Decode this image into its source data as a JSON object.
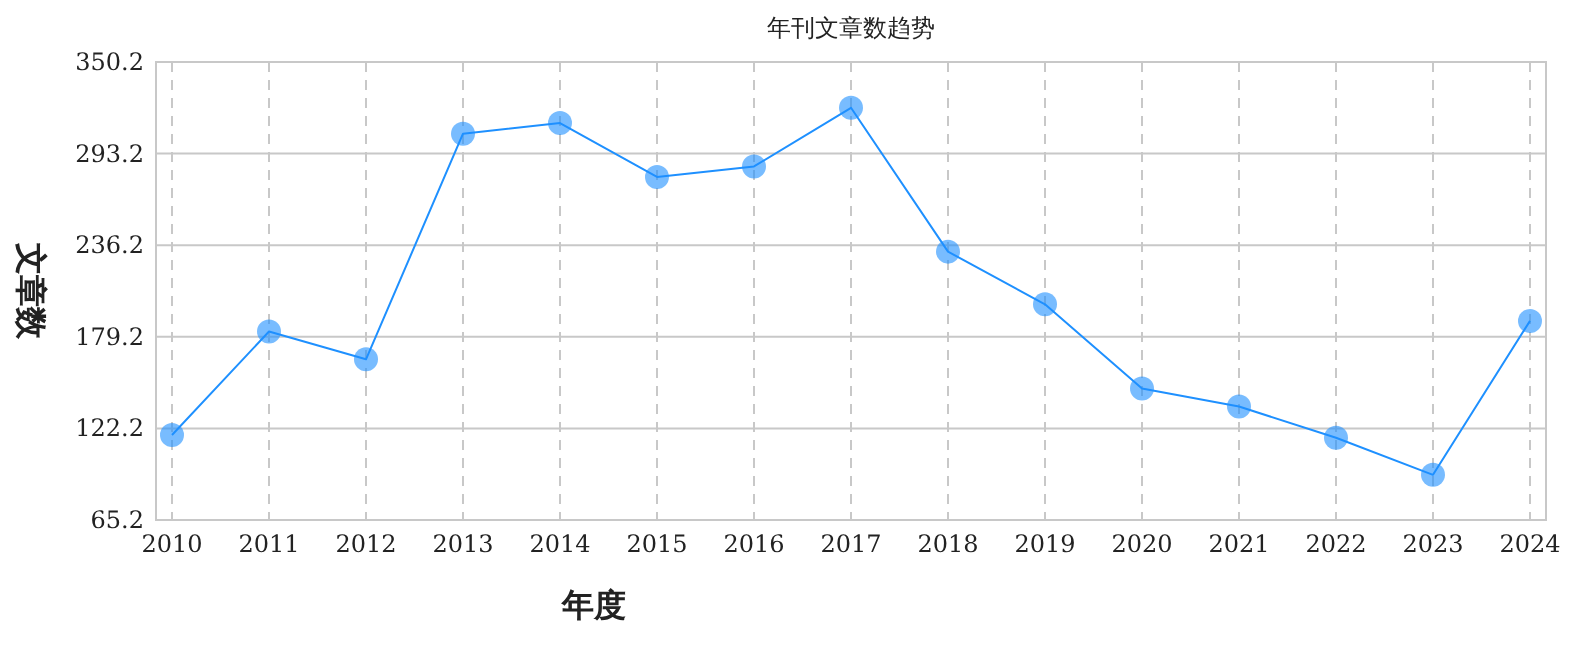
{
  "chart_data": {
    "type": "line",
    "title": "年刊文章数趋势",
    "xlabel": "年度",
    "ylabel": "文章数",
    "categories": [
      "2010",
      "2011",
      "2012",
      "2013",
      "2014",
      "2015",
      "2016",
      "2017",
      "2018",
      "2019",
      "2020",
      "2021",
      "2022",
      "2023",
      "2024"
    ],
    "series": [
      {
        "color": "#1e90ff",
        "values": [
          118.1,
          182.5,
          165.2,
          305.6,
          312.2,
          278.7,
          285.2,
          321.7,
          232.2,
          199.4,
          147,
          135.8,
          116.4,
          93.3,
          189.1
        ]
      }
    ],
    "ylim": [
      65.2,
      350.2
    ],
    "yticks": [
      65.2,
      122.2,
      179.2,
      236.2,
      293.2,
      350.2
    ],
    "grid": true,
    "marker": "circle",
    "line_style": "solid"
  }
}
